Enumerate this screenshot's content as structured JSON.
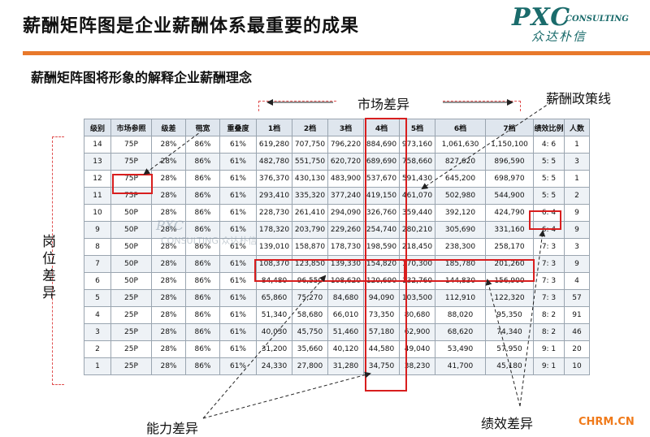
{
  "title": "薪酬矩阵图是企业薪酬体系最重要的成果",
  "logo": {
    "big": "PXC",
    "small": "CONSULTING",
    "cn": "众达朴信"
  },
  "subtitle": "薪酬矩阵图将形象的解释企业薪酬理念",
  "labels": {
    "market_diff": "市场差异",
    "policy_line": "薪酬政策线",
    "position_diff": "岗位差异",
    "ability_diff": "能力差异",
    "performance_diff": "绩效差异"
  },
  "watermark": {
    "big": "PXC",
    "small": "CONSULTING 众达朴信"
  },
  "site": "CHRM.CN",
  "table": {
    "headers": [
      "级别",
      "市场参照",
      "级差",
      "带宽",
      "重叠度",
      "1档",
      "2档",
      "3档",
      "4档",
      "5档",
      "6档",
      "7档",
      "绩效比例",
      "人数"
    ],
    "rows": [
      [
        "14",
        "75P",
        "28%",
        "86%",
        "61%",
        "619,280",
        "707,750",
        "796,220",
        "884,690",
        "973,160",
        "1,061,630",
        "1,150,100",
        "4: 6",
        "1"
      ],
      [
        "13",
        "75P",
        "28%",
        "86%",
        "61%",
        "482,780",
        "551,750",
        "620,720",
        "689,690",
        "758,660",
        "827,620",
        "896,590",
        "5: 5",
        "3"
      ],
      [
        "12",
        "75P",
        "28%",
        "86%",
        "61%",
        "376,370",
        "430,130",
        "483,900",
        "537,670",
        "591,430",
        "645,200",
        "698,970",
        "5: 5",
        "1"
      ],
      [
        "11",
        "75P",
        "28%",
        "86%",
        "61%",
        "293,410",
        "335,320",
        "377,240",
        "419,150",
        "461,070",
        "502,980",
        "544,900",
        "5: 5",
        "2"
      ],
      [
        "10",
        "50P",
        "28%",
        "86%",
        "61%",
        "228,730",
        "261,410",
        "294,090",
        "326,760",
        "359,440",
        "392,120",
        "424,790",
        "6: 4",
        "9"
      ],
      [
        "9",
        "50P",
        "28%",
        "86%",
        "61%",
        "178,320",
        "203,790",
        "229,260",
        "254,740",
        "280,210",
        "305,690",
        "331,160",
        "6: 4",
        "9"
      ],
      [
        "8",
        "50P",
        "28%",
        "86%",
        "61%",
        "139,010",
        "158,870",
        "178,730",
        "198,590",
        "218,450",
        "238,300",
        "258,170",
        "7: 3",
        "3"
      ],
      [
        "7",
        "50P",
        "28%",
        "86%",
        "61%",
        "108,370",
        "123,850",
        "139,330",
        "154,820",
        "170,300",
        "185,780",
        "201,260",
        "7: 3",
        "9"
      ],
      [
        "6",
        "50P",
        "28%",
        "86%",
        "61%",
        "84,480",
        "96,550",
        "108,620",
        "120,690",
        "132,760",
        "144,830",
        "156,900",
        "7: 3",
        "4"
      ],
      [
        "5",
        "25P",
        "28%",
        "86%",
        "61%",
        "65,860",
        "75,270",
        "84,680",
        "94,090",
        "103,500",
        "112,910",
        "122,320",
        "7: 3",
        "57"
      ],
      [
        "4",
        "25P",
        "28%",
        "86%",
        "61%",
        "51,340",
        "58,680",
        "66,010",
        "73,350",
        "80,680",
        "88,020",
        "95,350",
        "8: 2",
        "91"
      ],
      [
        "3",
        "25P",
        "28%",
        "86%",
        "61%",
        "40,030",
        "45,750",
        "51,460",
        "57,180",
        "62,900",
        "68,620",
        "74,340",
        "8: 2",
        "46"
      ],
      [
        "2",
        "25P",
        "28%",
        "86%",
        "61%",
        "31,200",
        "35,660",
        "40,120",
        "44,580",
        "49,040",
        "53,490",
        "57,950",
        "9: 1",
        "20"
      ],
      [
        "1",
        "25P",
        "28%",
        "86%",
        "61%",
        "24,330",
        "27,800",
        "31,280",
        "34,750",
        "38,230",
        "41,700",
        "45,180",
        "9: 1",
        "10"
      ]
    ]
  }
}
